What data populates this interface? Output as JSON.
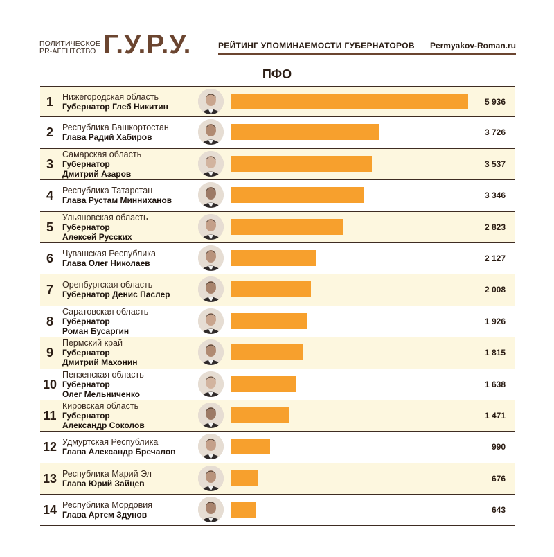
{
  "header": {
    "agency_line1": "ПОЛИТИЧЕСКОЕ",
    "agency_line2": "PR-АГЕНТСТВО",
    "logo": "Г.У.Р.У.",
    "rating_title": "РЕЙТИНГ УПОМИНАЕМОСТИ ГУБЕРНАТОРОВ",
    "site": "Permyakov-Roman.ru"
  },
  "title": "ПФО",
  "colors": {
    "bar": "#f7a02d",
    "brand": "#6b4530",
    "row_shade": "#fdf7df"
  },
  "chart_data": {
    "type": "bar",
    "orientation": "horizontal",
    "title": "ПФО",
    "xlim": [
      0,
      5936
    ],
    "grid": false,
    "rows": [
      {
        "rank": "1",
        "region": "Нижегородская область",
        "governor": [
          "Губернатор Глеб Никитин"
        ],
        "value": 5936,
        "label": "5 936",
        "shade": true
      },
      {
        "rank": "2",
        "region": "Республика Башкортостан",
        "governor": [
          "Глава Радий Хабиров"
        ],
        "value": 3726,
        "label": "3 726",
        "shade": false
      },
      {
        "rank": "3",
        "region": "Самарская область",
        "governor": [
          "Губернатор",
          "Дмитрий Азаров"
        ],
        "value": 3537,
        "label": "3 537",
        "shade": true
      },
      {
        "rank": "4",
        "region": "Республика Татарстан",
        "governor": [
          "Глава Рустам Минниханов"
        ],
        "value": 3346,
        "label": "3 346",
        "shade": false
      },
      {
        "rank": "5",
        "region": "Ульяновская область",
        "governor": [
          "Губернатор",
          "Алексей Русских"
        ],
        "value": 2823,
        "label": "2 823",
        "shade": true
      },
      {
        "rank": "6",
        "region": "Чувашская Республика",
        "governor": [
          "Глава Олег Николаев"
        ],
        "value": 2127,
        "label": "2 127",
        "shade": false
      },
      {
        "rank": "7",
        "region": "Оренбургская область",
        "governor": [
          "Губернатор Денис Паслер"
        ],
        "value": 2008,
        "label": "2 008",
        "shade": true
      },
      {
        "rank": "8",
        "region": "Саратовская область",
        "governor": [
          "Губернатор",
          "Роман Бусаргин"
        ],
        "value": 1926,
        "label": "1 926",
        "shade": false
      },
      {
        "rank": "9",
        "region": "Пермский край",
        "governor": [
          "Губернатор",
          "Дмитрий Махонин"
        ],
        "value": 1815,
        "label": "1 815",
        "shade": true
      },
      {
        "rank": "10",
        "region": "Пензенская область",
        "governor": [
          "Губернатор",
          "Олег Мельниченко"
        ],
        "value": 1638,
        "label": "1 638",
        "shade": false
      },
      {
        "rank": "11",
        "region": "Кировская область",
        "governor": [
          "Губернатор",
          "Александр Соколов"
        ],
        "value": 1471,
        "label": "1 471",
        "shade": true
      },
      {
        "rank": "12",
        "region": "Удмуртская Республика",
        "governor": [
          "Глава Александр Бречалов"
        ],
        "value": 990,
        "label": "990",
        "shade": false
      },
      {
        "rank": "13",
        "region": "Республика Марий Эл",
        "governor": [
          "Глава Юрий Зайцев"
        ],
        "value": 676,
        "label": "676",
        "shade": true
      },
      {
        "rank": "14",
        "region": "Республика Мордовия",
        "governor": [
          "Глава Артем Здунов"
        ],
        "value": 643,
        "label": "643",
        "shade": false
      }
    ]
  }
}
